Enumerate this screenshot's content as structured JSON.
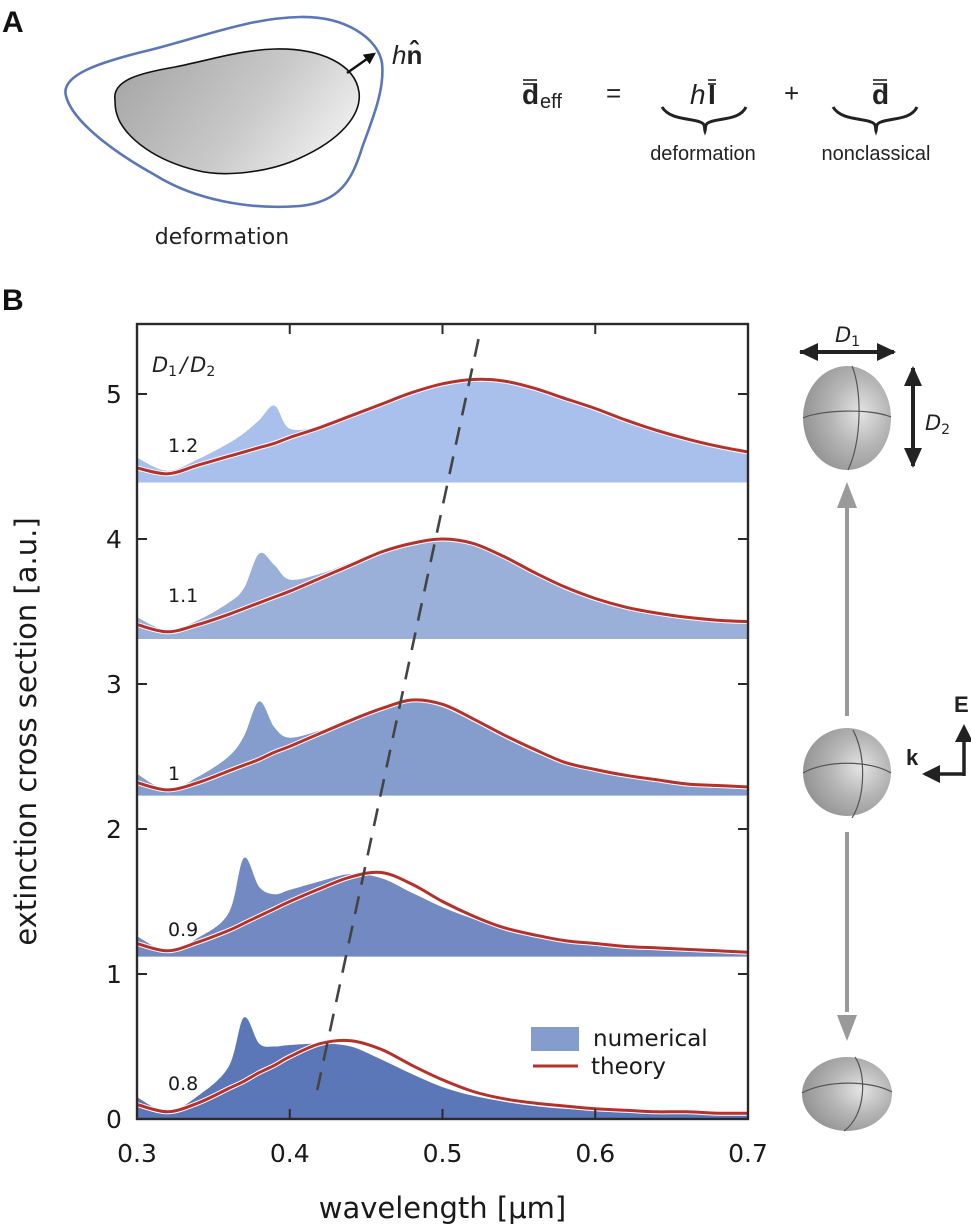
{
  "panel_a": {
    "label": "A",
    "shape_caption": "deformation",
    "normal_label_h": "h",
    "normal_label_n": "n̂",
    "equation": {
      "lhs_symbol": "d",
      "lhs_subscript": "eff",
      "equals": "=",
      "term1_h": "h",
      "term1_symbol": "I",
      "term1_caption": "deformation",
      "plus": "+",
      "term2_symbol": "d",
      "term2_caption": "nonclassical"
    }
  },
  "panel_b": {
    "label": "B",
    "ratio_header_d1": "D",
    "ratio_header_sub1": "1",
    "ratio_header_slash": "/",
    "ratio_header_d2": "D",
    "ratio_header_sub2": "2",
    "schematic": {
      "d1_label": "D",
      "d1_sub": "1",
      "d2_label": "D",
      "d2_sub": "2",
      "k_label": "k",
      "e_label": "E"
    }
  },
  "colors": {
    "theory": "#b5312b",
    "numerical_1_2": "#a9bfec",
    "numerical_1_1": "#9ab0d8",
    "numerical_1_0": "#849dcc",
    "numerical_0_9": "#7389c2",
    "numerical_0_8": "#5b77b8",
    "legend_numerical": "#849dcc",
    "outline_blue": "#5b77b8",
    "dashed_line": "#444444",
    "arrow_gray": "#9a9a9a"
  },
  "chart_data": {
    "type": "area",
    "title": "",
    "xlabel": "wavelength [μm]",
    "ylabel": "extinction cross section [a.u.]",
    "xlim": [
      0.3,
      0.7
    ],
    "ylim": [
      0,
      5.5
    ],
    "xticks": [
      0.3,
      0.4,
      0.5,
      0.6,
      0.7
    ],
    "xtick_labels": [
      "0.3",
      "0.4",
      "0.5",
      "0.6",
      "0.7"
    ],
    "yticks": [
      0,
      1,
      2,
      3,
      4,
      5
    ],
    "ytick_labels": [
      "0",
      "1",
      "2",
      "3",
      "4",
      "5"
    ],
    "grid": false,
    "legend": {
      "placement": "bottom-right",
      "entries": [
        {
          "label": "numerical",
          "kind": "area"
        },
        {
          "label": "theory",
          "kind": "line"
        }
      ]
    },
    "x": [
      0.3,
      0.32,
      0.34,
      0.36,
      0.37,
      0.38,
      0.39,
      0.4,
      0.42,
      0.44,
      0.46,
      0.48,
      0.5,
      0.52,
      0.54,
      0.56,
      0.58,
      0.6,
      0.62,
      0.64,
      0.66,
      0.68,
      0.7
    ],
    "series": [
      {
        "name": "D1/D2 = 1.2",
        "ratio_label": "1.2",
        "baseline": 4.39,
        "numerical": [
          4.56,
          4.47,
          4.55,
          4.66,
          4.73,
          4.82,
          4.92,
          4.76,
          4.78,
          4.86,
          4.94,
          5.02,
          5.07,
          5.1,
          5.09,
          5.04,
          4.97,
          4.9,
          4.82,
          4.75,
          4.69,
          4.64,
          4.6
        ],
        "theory": [
          4.49,
          4.45,
          4.51,
          4.57,
          4.6,
          4.63,
          4.66,
          4.7,
          4.77,
          4.85,
          4.93,
          5.01,
          5.07,
          5.1,
          5.09,
          5.04,
          4.97,
          4.9,
          4.82,
          4.75,
          4.69,
          4.64,
          4.6
        ]
      },
      {
        "name": "D1/D2 = 1.1",
        "ratio_label": "1.1",
        "baseline": 3.31,
        "numerical": [
          3.46,
          3.37,
          3.44,
          3.56,
          3.66,
          3.9,
          3.82,
          3.72,
          3.76,
          3.84,
          3.92,
          3.98,
          4.0,
          3.97,
          3.88,
          3.77,
          3.67,
          3.59,
          3.53,
          3.49,
          3.46,
          3.44,
          3.43
        ],
        "theory": [
          3.41,
          3.36,
          3.41,
          3.48,
          3.52,
          3.56,
          3.6,
          3.64,
          3.73,
          3.82,
          3.91,
          3.97,
          4.0,
          3.97,
          3.88,
          3.77,
          3.67,
          3.59,
          3.53,
          3.49,
          3.46,
          3.44,
          3.43
        ]
      },
      {
        "name": "D1/D2 = 1",
        "ratio_label": "1",
        "baseline": 2.23,
        "numerical": [
          2.38,
          2.27,
          2.36,
          2.5,
          2.64,
          2.88,
          2.7,
          2.63,
          2.68,
          2.76,
          2.84,
          2.88,
          2.84,
          2.74,
          2.63,
          2.53,
          2.45,
          2.4,
          2.36,
          2.33,
          2.31,
          2.3,
          2.29
        ],
        "theory": [
          2.32,
          2.27,
          2.32,
          2.4,
          2.44,
          2.48,
          2.53,
          2.57,
          2.66,
          2.75,
          2.83,
          2.89,
          2.86,
          2.76,
          2.65,
          2.55,
          2.46,
          2.41,
          2.37,
          2.34,
          2.31,
          2.3,
          2.29
        ]
      },
      {
        "name": "D1/D2 = 0.9",
        "ratio_label": "0.9",
        "baseline": 1.12,
        "numerical": [
          1.26,
          1.16,
          1.25,
          1.42,
          1.8,
          1.6,
          1.55,
          1.58,
          1.64,
          1.69,
          1.66,
          1.56,
          1.46,
          1.38,
          1.31,
          1.26,
          1.22,
          1.2,
          1.18,
          1.17,
          1.16,
          1.15,
          1.15
        ],
        "theory": [
          1.21,
          1.16,
          1.22,
          1.3,
          1.35,
          1.4,
          1.45,
          1.5,
          1.59,
          1.67,
          1.7,
          1.62,
          1.5,
          1.4,
          1.32,
          1.27,
          1.23,
          1.21,
          1.19,
          1.18,
          1.17,
          1.16,
          1.15
        ]
      },
      {
        "name": "D1/D2 = 0.8",
        "ratio_label": "0.8",
        "baseline": 0.0,
        "numerical": [
          0.15,
          0.05,
          0.16,
          0.36,
          0.7,
          0.52,
          0.5,
          0.51,
          0.52,
          0.5,
          0.41,
          0.31,
          0.22,
          0.16,
          0.12,
          0.09,
          0.07,
          0.06,
          0.05,
          0.05,
          0.04,
          0.04,
          0.04
        ],
        "theory": [
          0.1,
          0.05,
          0.11,
          0.21,
          0.26,
          0.32,
          0.37,
          0.43,
          0.52,
          0.54,
          0.48,
          0.37,
          0.27,
          0.19,
          0.14,
          0.11,
          0.09,
          0.07,
          0.06,
          0.05,
          0.05,
          0.04,
          0.04
        ]
      }
    ],
    "annotations": [
      {
        "type": "dashed-line",
        "description": "resonance peak shift",
        "from": {
          "x": 0.418,
          "y": 0.2
        },
        "to": {
          "x": 0.524,
          "y": 5.4
        }
      }
    ]
  }
}
